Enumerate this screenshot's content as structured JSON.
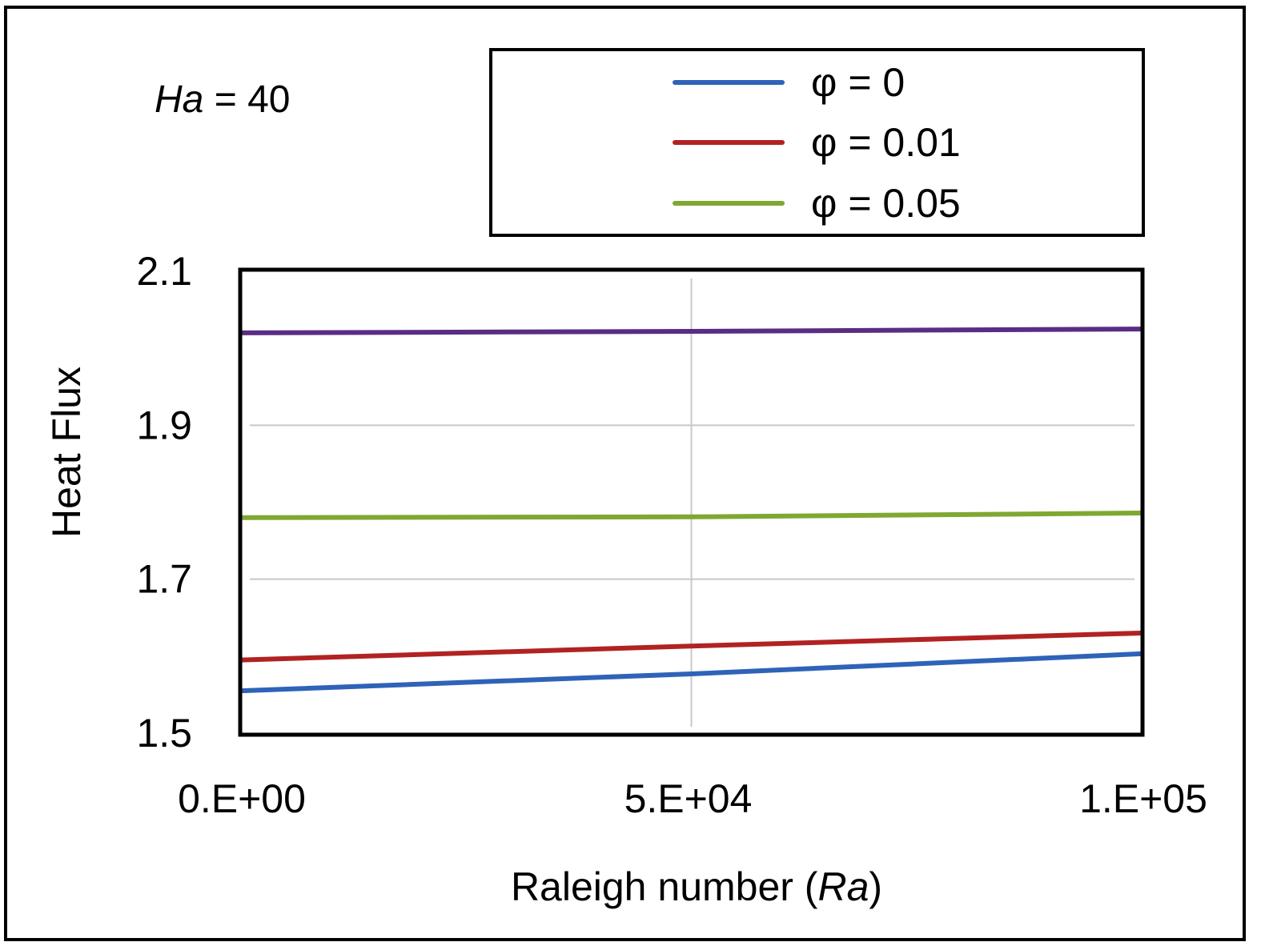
{
  "chart_data": {
    "type": "line",
    "annotation": {
      "variable": "Ha",
      "equals": " = ",
      "value": "40"
    },
    "xlabel": {
      "prefix": "Raleigh number (",
      "variable": "Ra",
      "suffix": ")"
    },
    "ylabel": "Heat Flux",
    "x_tick_values": [
      0,
      50000,
      100000
    ],
    "x_tick_labels": [
      "0.E+00",
      "5.E+04",
      "1.E+05"
    ],
    "y_tick_values": [
      1.5,
      1.7,
      1.9,
      2.1
    ],
    "y_tick_labels": [
      "1.5",
      "1.7",
      "1.9",
      "2.1"
    ],
    "xlim": [
      0,
      100000
    ],
    "ylim": [
      1.5,
      2.1
    ],
    "grid": true,
    "legend_position": "top-right",
    "series": [
      {
        "name": "φ = 0",
        "color": "#2e63b8",
        "in_legend": true,
        "x": [
          0,
          50000,
          100000
        ],
        "y": [
          1.555,
          1.577,
          1.603
        ]
      },
      {
        "name": "φ = 0.01",
        "color": "#b22222",
        "in_legend": true,
        "x": [
          0,
          50000,
          100000
        ],
        "y": [
          1.595,
          1.613,
          1.63
        ]
      },
      {
        "name": "φ = 0.05",
        "color": "#7fa832",
        "in_legend": true,
        "x": [
          0,
          50000,
          100000
        ],
        "y": [
          1.78,
          1.781,
          1.786
        ]
      },
      {
        "name": "",
        "color": "#5b2c83",
        "in_legend": false,
        "x": [
          0,
          50000,
          100000
        ],
        "y": [
          2.02,
          2.022,
          2.025
        ]
      }
    ]
  }
}
